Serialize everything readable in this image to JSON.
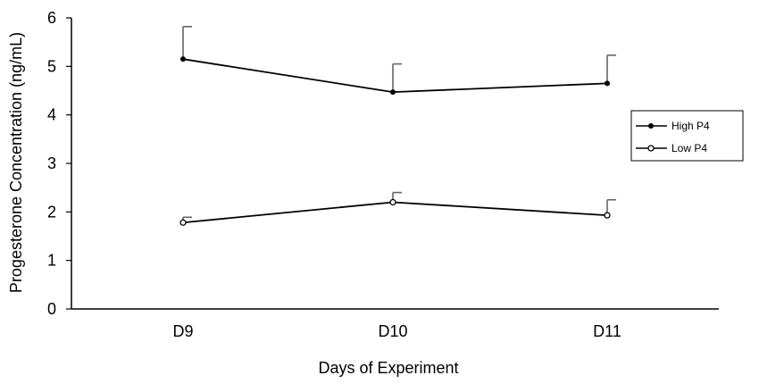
{
  "chart_data": {
    "type": "line",
    "title": "",
    "xlabel": "Days of Experiment",
    "ylabel": "Progesterone Concentration (ng/mL)",
    "categories": [
      "D9",
      "D10",
      "D11"
    ],
    "ylim": [
      0,
      6
    ],
    "yticks": [
      "0",
      "1",
      "2",
      "3",
      "4",
      "5",
      "6"
    ],
    "grid": false,
    "legend_position": "right",
    "series": [
      {
        "name": "High P4",
        "values": [
          5.15,
          4.47,
          4.65
        ],
        "error_upper": [
          0.67,
          0.58,
          0.58
        ],
        "marker": "filled-circle",
        "color": "#000000"
      },
      {
        "name": "Low P4",
        "values": [
          1.78,
          2.2,
          1.93
        ],
        "error_upper": [
          0.11,
          0.2,
          0.32
        ],
        "marker": "open-circle",
        "color": "#000000"
      }
    ]
  }
}
